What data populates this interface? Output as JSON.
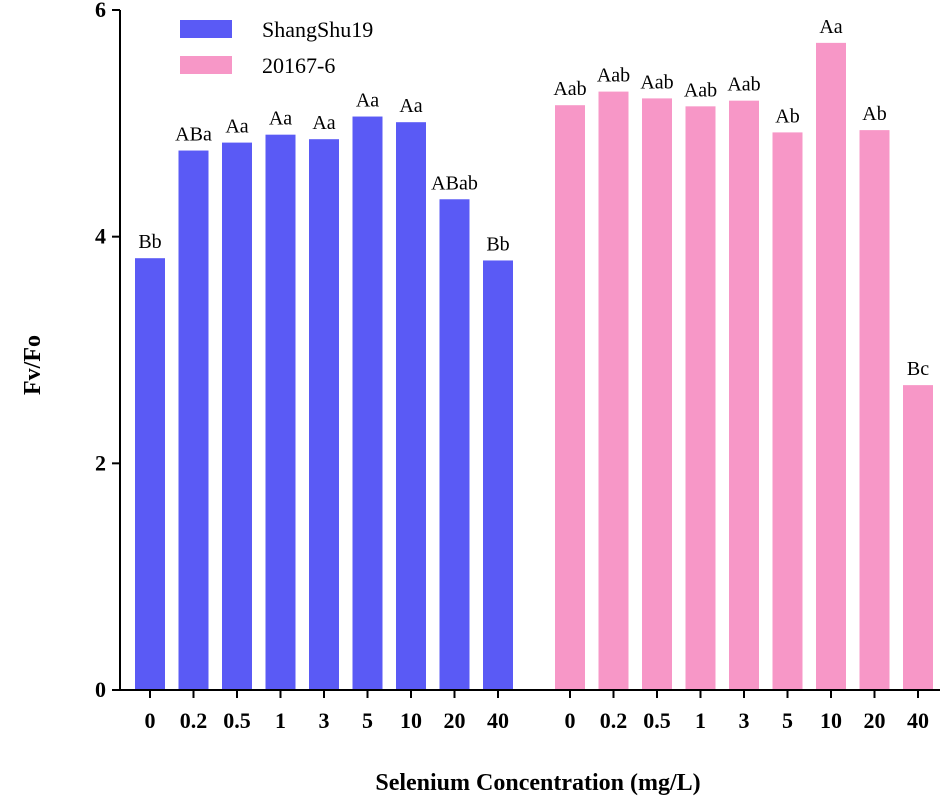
{
  "chart_data": {
    "type": "bar",
    "xlabel": "Selenium Concentration (mg/L)",
    "ylabel": "Fv/Fo",
    "ylim": [
      0,
      6
    ],
    "yticks": [
      0,
      2,
      4,
      6
    ],
    "grid": false,
    "legend_position": "top-left",
    "categories": [
      "0",
      "0.2",
      "0.5",
      "1",
      "3",
      "5",
      "10",
      "20",
      "40"
    ],
    "series": [
      {
        "name": "ShangShu19",
        "color": "#5a5af5",
        "values": [
          3.81,
          4.76,
          4.83,
          4.9,
          4.86,
          5.06,
          5.01,
          4.33,
          3.79
        ],
        "labels": [
          "Bb",
          "ABa",
          "Aa",
          "Aa",
          "Aa",
          "Aa",
          "Aa",
          "ABab",
          "Bb"
        ]
      },
      {
        "name": "20167-6",
        "color": "#f797c7",
        "values": [
          5.16,
          5.28,
          5.22,
          5.15,
          5.2,
          4.92,
          5.71,
          4.94,
          2.69
        ],
        "labels": [
          "Aab",
          "Aab",
          "Aab",
          "Aab",
          "Aab",
          "Ab",
          "Aa",
          "Ab",
          "Bc"
        ]
      }
    ]
  }
}
